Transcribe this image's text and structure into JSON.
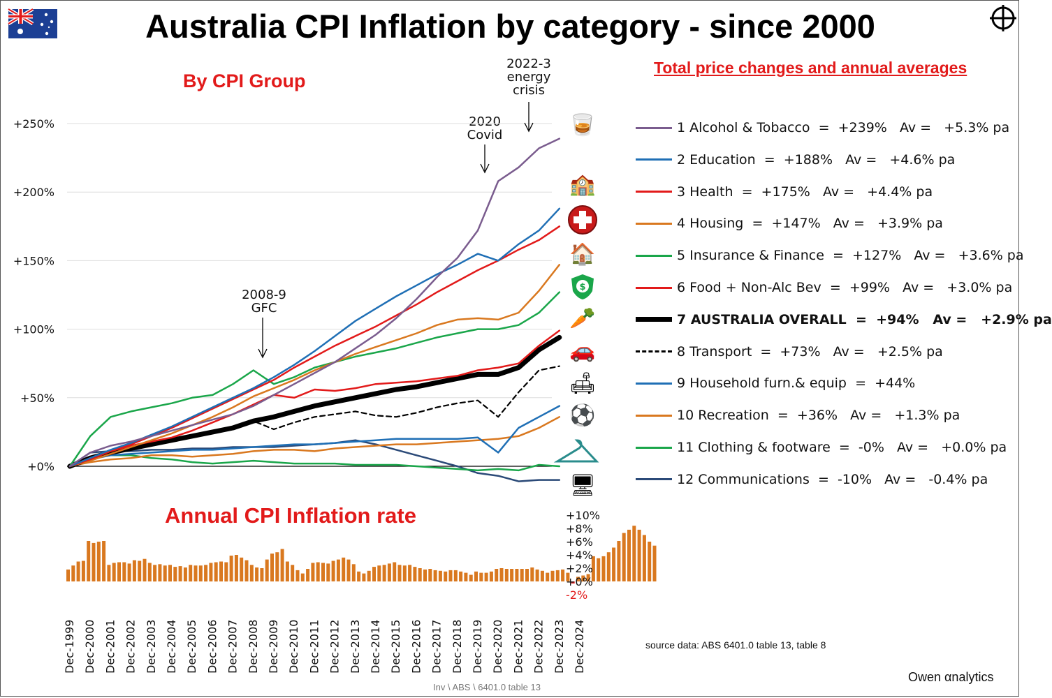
{
  "title": "Australia CPI Inflation by category - since 2000",
  "subtitle_groups": "By CPI Group",
  "subtitle_annual": "Annual CPI Inflation rate",
  "legend_heading": "Total price changes and annual averages",
  "annotations": {
    "gfc": [
      "2008-9",
      "GFC"
    ],
    "covid": [
      "2020",
      "Covid"
    ],
    "energy": [
      "2022-3",
      "energy",
      "crisis"
    ]
  },
  "source": "source data: ABS  6401.0 table 13, table 8",
  "footer": "Inv \\ ABS \\ 6401.0 table 13",
  "brand": "Owen αnalytics",
  "colors": {
    "alcohol": "#7a5c8e",
    "education": "#1f6fb5",
    "health": "#e21a1a",
    "housing": "#d9781f",
    "insurance": "#1aa64a",
    "food": "#e21a1a",
    "overall": "#000000",
    "transport": "#000000",
    "household": "#1f6fb5",
    "recreation": "#d9781f",
    "clothing": "#1aa64a",
    "communications": "#2b4a78",
    "bars": "#d9781f",
    "negative": "#e21a1a",
    "heading_red": "#e21a1a"
  },
  "icons": [
    "alcohol-tobacco-icon",
    "school-icon",
    "health-cross-icon",
    "house-icon",
    "money-shield-icon",
    "food-icon",
    "car-icon",
    "furniture-icon",
    "ball-icon",
    "hanger-icon",
    "computer-icon"
  ],
  "chart_data": [
    {
      "type": "line",
      "title": "By CPI Group",
      "xlabel": "",
      "ylabel": "",
      "x_ticks": [
        "Dec-1999",
        "Dec-2000",
        "Dec-2001",
        "Dec-2002",
        "Dec-2003",
        "Dec-2004",
        "Dec-2005",
        "Dec-2006",
        "Dec-2007",
        "Dec-2008",
        "Dec-2009",
        "Dec-2010",
        "Dec-2011",
        "Dec-2012",
        "Dec-2013",
        "Dec-2014",
        "Dec-2015",
        "Dec-2016",
        "Dec-2017",
        "Dec-2018",
        "Dec-2019",
        "Dec-2020",
        "Dec-2021",
        "Dec-2022",
        "Dec-2023",
        "Dec-2024"
      ],
      "y_ticks": [
        "+0%",
        "+50%",
        "+100%",
        "+150%",
        "+200%",
        "+250%"
      ],
      "ylim": [
        0,
        250
      ],
      "x_years": [
        1999,
        2000,
        2001,
        2002,
        2003,
        2004,
        2005,
        2006,
        2007,
        2008,
        2009,
        2010,
        2011,
        2012,
        2013,
        2014,
        2015,
        2016,
        2017,
        2018,
        2019,
        2020,
        2021,
        2022,
        2023
      ],
      "series": [
        {
          "name": "1 Alcohol & Tobacco",
          "legend": "1 Alcohol & Tobacco  =  +239%   Av =   +5.3% pa",
          "color_key": "alcohol",
          "dash": "",
          "width": 2.5,
          "values": [
            0,
            10,
            15,
            18,
            22,
            26,
            30,
            34,
            38,
            44,
            52,
            60,
            68,
            76,
            86,
            96,
            108,
            122,
            138,
            152,
            172,
            208,
            218,
            232,
            239
          ]
        },
        {
          "name": "2 Education",
          "legend": "2 Education  =  +188%   Av =   +4.6% pa",
          "color_key": "education",
          "dash": "",
          "width": 2.5,
          "values": [
            0,
            6,
            12,
            17,
            23,
            29,
            36,
            43,
            50,
            57,
            65,
            74,
            84,
            95,
            106,
            115,
            124,
            132,
            140,
            147,
            155,
            150,
            162,
            172,
            188
          ]
        },
        {
          "name": "3 Health",
          "legend": "3 Health  =  +175%   Av =   +4.4% pa",
          "color_key": "health",
          "dash": "",
          "width": 2.5,
          "values": [
            0,
            5,
            11,
            16,
            22,
            28,
            35,
            42,
            49,
            56,
            63,
            72,
            80,
            88,
            95,
            102,
            110,
            118,
            127,
            135,
            143,
            150,
            158,
            165,
            175
          ]
        },
        {
          "name": "4 Housing",
          "legend": "4 Housing  =  +147%   Av =   +3.9% pa",
          "color_key": "housing",
          "dash": "",
          "width": 2.5,
          "values": [
            0,
            4,
            9,
            14,
            19,
            24,
            30,
            36,
            43,
            51,
            57,
            63,
            70,
            76,
            82,
            87,
            92,
            97,
            103,
            107,
            108,
            107,
            112,
            128,
            147
          ]
        },
        {
          "name": "5 Insurance & Finance",
          "legend": "5 Insurance & Finance  =  +127%   Av =   +3.6% pa",
          "color_key": "insurance",
          "dash": "",
          "width": 2.5,
          "values": [
            0,
            22,
            36,
            40,
            43,
            46,
            50,
            52,
            60,
            70,
            60,
            65,
            72,
            76,
            80,
            83,
            86,
            90,
            94,
            97,
            100,
            100,
            103,
            112,
            127
          ]
        },
        {
          "name": "6 Food + Non-Alc Bev",
          "legend": "6 Food + Non-Alc Bev  =  +99%   Av =   +3.0% pa",
          "color_key": "food",
          "dash": "",
          "width": 2.5,
          "values": [
            0,
            6,
            11,
            15,
            18,
            21,
            26,
            32,
            38,
            45,
            52,
            50,
            56,
            55,
            57,
            60,
            61,
            62,
            64,
            66,
            70,
            72,
            75,
            88,
            99
          ]
        },
        {
          "name": "7 AUSTRALIA OVERALL",
          "legend": "7 AUSTRALIA OVERALL  =  +94%   Av =   +2.9% pa",
          "color_key": "overall",
          "dash": "",
          "width": 7,
          "bold": true,
          "values": [
            0,
            6,
            10,
            13,
            16,
            19,
            22,
            25,
            28,
            33,
            36,
            40,
            44,
            47,
            50,
            53,
            56,
            58,
            61,
            64,
            67,
            67,
            72,
            85,
            94
          ]
        },
        {
          "name": "8 Transport",
          "legend": "8 Transport  =  +73%   Av =   +2.5% pa",
          "color_key": "transport",
          "dash": "7 5",
          "width": 2.2,
          "values": [
            0,
            5,
            10,
            13,
            15,
            18,
            22,
            25,
            27,
            33,
            27,
            32,
            36,
            38,
            40,
            37,
            36,
            39,
            43,
            46,
            48,
            36,
            54,
            70,
            73
          ]
        },
        {
          "name": "9 Household furn.& equip",
          "legend": "9 Household furn.& equip  =  +44%",
          "color_key": "household",
          "dash": "",
          "width": 2.5,
          "values": [
            0,
            5,
            8,
            9,
            10,
            11,
            12,
            12,
            13,
            14,
            15,
            16,
            16,
            17,
            18,
            19,
            20,
            20,
            20,
            20,
            21,
            10,
            28,
            36,
            44
          ]
        },
        {
          "name": "10 Recreation",
          "legend": "10 Recreation  =  +36%   Av =   +1.3% pa",
          "color_key": "recreation",
          "dash": "",
          "width": 2.5,
          "values": [
            0,
            3,
            5,
            6,
            8,
            8,
            7,
            8,
            9,
            11,
            12,
            12,
            11,
            13,
            14,
            15,
            16,
            16,
            17,
            18,
            19,
            20,
            22,
            28,
            36
          ]
        },
        {
          "name": "11 Clothing & footware",
          "legend": "11 Clothing & footware  =  -0%   Av =   +0.0% pa",
          "color_key": "clothing",
          "dash": "",
          "width": 2.5,
          "values": [
            0,
            7,
            8,
            8,
            6,
            5,
            3,
            2,
            3,
            4,
            3,
            2,
            2,
            2,
            1,
            1,
            1,
            0,
            -1,
            -2,
            -3,
            -2,
            -3,
            1,
            0
          ]
        },
        {
          "name": "12 Communications",
          "legend": "12 Communications  =  -10%   Av =   -0.4% pa",
          "color_key": "communications",
          "dash": "",
          "width": 2.5,
          "values": [
            0,
            10,
            11,
            11,
            12,
            12,
            13,
            13,
            14,
            14,
            14,
            15,
            16,
            17,
            19,
            16,
            12,
            8,
            4,
            0,
            -5,
            -7,
            -11,
            -10,
            -10
          ]
        }
      ]
    },
    {
      "type": "bar",
      "title": "Annual CPI Inflation rate",
      "y_ticks": [
        "+10%",
        "+8%",
        "+6%",
        "+4%",
        "+2%",
        "+0%",
        "-2%"
      ],
      "ylim": [
        -2,
        10
      ],
      "start": "Dec-1999",
      "frequency": "quarterly",
      "values": [
        1.8,
        2.4,
        3.0,
        3.1,
        6.1,
        5.8,
        6.0,
        6.1,
        2.5,
        2.8,
        2.9,
        2.9,
        2.7,
        3.2,
        3.1,
        3.4,
        2.8,
        2.5,
        2.6,
        2.4,
        2.5,
        2.2,
        2.3,
        2.1,
        2.5,
        2.4,
        2.4,
        2.5,
        2.8,
        2.9,
        3.0,
        2.9,
        3.9,
        4.0,
        3.6,
        3.2,
        2.5,
        2.1,
        2.0,
        3.3,
        4.2,
        4.4,
        4.9,
        3.0,
        2.5,
        1.7,
        1.2,
        1.9,
        2.8,
        2.9,
        2.8,
        2.7,
        3.1,
        3.3,
        3.6,
        3.3,
        2.6,
        1.5,
        1.2,
        1.6,
        2.2,
        2.4,
        2.5,
        2.7,
        2.9,
        2.5,
        2.4,
        2.5,
        2.2,
        2.0,
        1.8,
        1.9,
        1.7,
        1.6,
        1.5,
        1.7,
        1.7,
        1.5,
        1.3,
        1.0,
        1.5,
        1.3,
        1.3,
        1.5,
        1.9,
        2.0,
        1.9,
        1.9,
        1.9,
        1.9,
        1.9,
        2.1,
        1.8,
        1.6,
        1.3,
        1.6,
        1.7,
        1.8,
        1.3,
        -0.3,
        0.7,
        0.9,
        1.1,
        3.8,
        3.5,
        3.8,
        4.4,
        5.1,
        6.1,
        7.3,
        7.8,
        8.4,
        7.8,
        7.0,
        6.0,
        5.4
      ]
    }
  ]
}
